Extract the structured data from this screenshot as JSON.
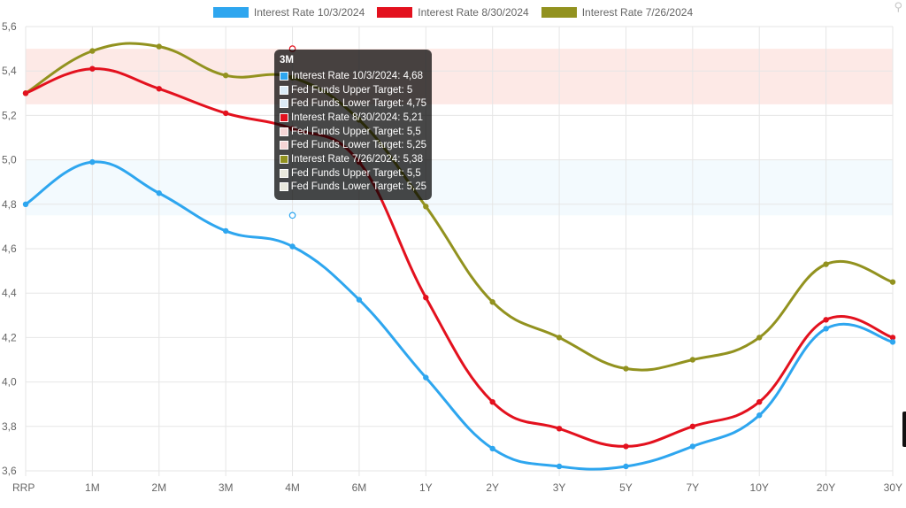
{
  "chart_data": {
    "type": "line",
    "categories": [
      "RRP",
      "1M",
      "2M",
      "3M",
      "4M",
      "6M",
      "1Y",
      "2Y",
      "3Y",
      "5Y",
      "7Y",
      "10Y",
      "20Y",
      "30Y"
    ],
    "ylim": [
      3.6,
      5.6
    ],
    "yticks": [
      "5,6",
      "5,4",
      "5,2",
      "5,0",
      "4,8",
      "4,6",
      "4,4",
      "4,2",
      "4,0",
      "3,8",
      "3,6"
    ],
    "series": [
      {
        "name": "Interest Rate 10/3/2024",
        "color": "#2ea6ef",
        "values": [
          4.8,
          4.99,
          4.85,
          4.68,
          4.61,
          4.37,
          4.02,
          3.7,
          3.62,
          3.62,
          3.71,
          3.85,
          4.24,
          4.18
        ]
      },
      {
        "name": "Interest Rate 8/30/2024",
        "color": "#e3111e",
        "values": [
          5.3,
          5.41,
          5.32,
          5.21,
          5.14,
          4.99,
          4.38,
          3.91,
          3.79,
          3.71,
          3.8,
          3.91,
          4.28,
          4.2
        ]
      },
      {
        "name": "Interest Rate 7/26/2024",
        "color": "#92921f",
        "values": [
          5.3,
          5.49,
          5.51,
          5.38,
          5.37,
          5.18,
          4.79,
          4.36,
          4.2,
          4.06,
          4.1,
          4.2,
          4.53,
          4.45
        ]
      }
    ],
    "bands": [
      {
        "lower": 4.75,
        "upper": 5.0,
        "color": "rgba(46,166,239,0.06)"
      },
      {
        "lower": 5.25,
        "upper": 5.5,
        "color": "rgba(240,120,100,0.16)"
      }
    ],
    "hover_markers": [
      {
        "category": "4M",
        "value": 4.75,
        "color": "#2ea6ef"
      },
      {
        "category": "4M",
        "value": 5.5,
        "color": "#e3111e"
      }
    ],
    "legend_position": "top-center",
    "grid": true
  },
  "tooltip": {
    "title": "3M",
    "rows": [
      {
        "text": "Interest Rate 10/3/2024: 4,68",
        "color": "#2ea6ef"
      },
      {
        "text": "Fed Funds Upper Target: 5",
        "color": "#dbeaf5"
      },
      {
        "text": "Fed Funds Lower Target: 4,75",
        "color": "#dbeaf5"
      },
      {
        "text": "Interest Rate 8/30/2024: 5,21",
        "color": "#e3111e"
      },
      {
        "text": "Fed Funds Upper Target: 5,5",
        "color": "#f5d5d5"
      },
      {
        "text": "Fed Funds Lower Target: 5,25",
        "color": "#f5d5d5"
      },
      {
        "text": "Interest Rate 7/26/2024: 5,38",
        "color": "#92921f"
      },
      {
        "text": "Fed Funds Upper Target: 5,5",
        "color": "#e8e8dc"
      },
      {
        "text": "Fed Funds Lower Target: 5,25",
        "color": "#e8e8dc"
      }
    ]
  }
}
